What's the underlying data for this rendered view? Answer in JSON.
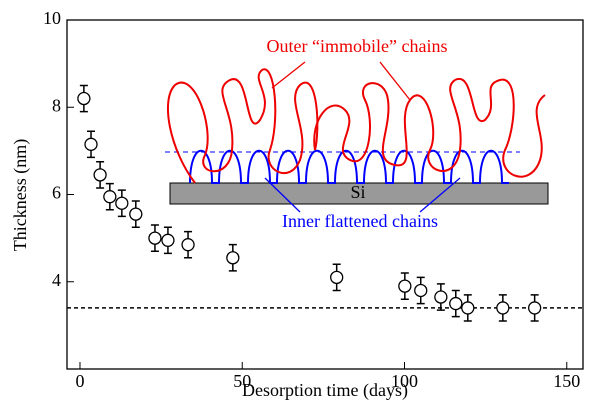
{
  "chart_data": {
    "type": "scatter",
    "x_label": "Desorption time (days)",
    "y_label": "Thickness (nm)",
    "x": [
      1.2,
      3.4,
      6.2,
      9.2,
      12.9,
      17.2,
      23.1,
      27.1,
      33.3,
      47.1,
      79.1,
      100.1,
      105,
      111.2,
      115.8,
      119.5,
      130.3,
      140.1
    ],
    "values": [
      8.2,
      7.15,
      6.45,
      5.95,
      5.8,
      5.55,
      5.0,
      4.95,
      4.85,
      4.55,
      4.1,
      3.9,
      3.8,
      3.65,
      3.5,
      3.4,
      3.4,
      3.4
    ],
    "errors": [
      0.3,
      0.3,
      0.3,
      0.3,
      0.3,
      0.3,
      0.3,
      0.3,
      0.3,
      0.3,
      0.3,
      0.3,
      0.3,
      0.3,
      0.3,
      0.3,
      0.3,
      0.3
    ],
    "color": "#000000",
    "reference_line": 3.4,
    "xlim": [
      -4,
      155
    ],
    "ylim": [
      2,
      10
    ],
    "xticks": [
      0,
      50,
      100,
      150
    ],
    "yticks": [
      4,
      6,
      8,
      10
    ],
    "annotations": {
      "outer": "Outer “immobile” chains",
      "substrate": "Si",
      "inner": "Inner flattened chains"
    }
  }
}
